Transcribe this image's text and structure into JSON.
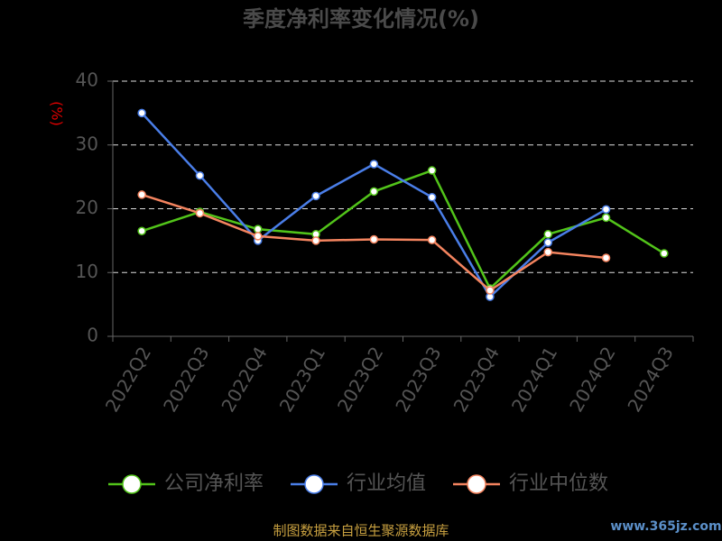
{
  "chart_data": {
    "type": "line",
    "title": "季度净利率变化情况(%)",
    "y_label": "(%)",
    "categories": [
      "2022Q2",
      "2022Q3",
      "2022Q4",
      "2023Q1",
      "2023Q2",
      "2023Q3",
      "2023Q4",
      "2024Q1",
      "2024Q2",
      "2024Q3"
    ],
    "series": [
      {
        "name": "公司净利率",
        "color": "#52c41a",
        "values": [
          16.5,
          19.5,
          16.8,
          16.0,
          22.7,
          26.0,
          7.5,
          16.0,
          18.6,
          13.0
        ]
      },
      {
        "name": "行业均值",
        "color": "#4a7ee8",
        "values": [
          35.0,
          25.2,
          15.0,
          22.0,
          27.0,
          21.8,
          6.2,
          14.7,
          19.9,
          null
        ]
      },
      {
        "name": "行业中位数",
        "color": "#f4845f",
        "values": [
          22.2,
          19.3,
          15.7,
          15.0,
          15.2,
          15.1,
          7.2,
          13.2,
          12.3,
          null
        ]
      }
    ],
    "ylim": [
      0,
      40
    ],
    "yticks": [
      0,
      10,
      20,
      30,
      40
    ],
    "grid": true,
    "source": "制图数据来自恒生聚源数据库",
    "watermark": "www.365jz.com"
  }
}
